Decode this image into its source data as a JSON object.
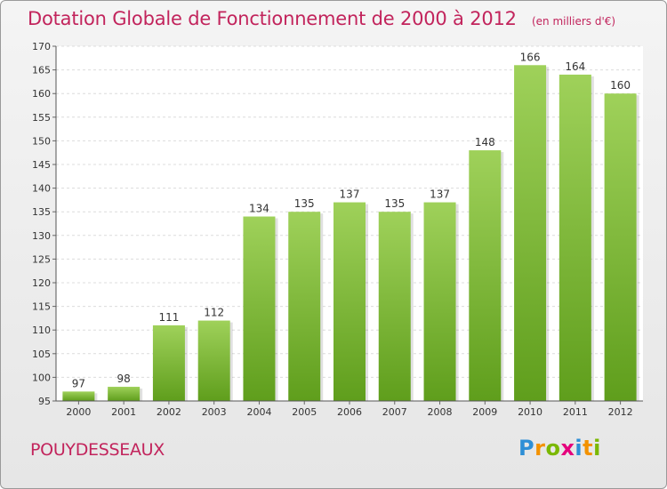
{
  "header": {
    "title": "Dotation Globale de Fonctionnement de 2000 à 2012",
    "subtitle": "(en milliers d'€)"
  },
  "footer": {
    "commune": "POUYDESSEAUX",
    "logo_letters": [
      "P",
      "r",
      "o",
      "x",
      "i",
      "t",
      "i"
    ],
    "logo_colors": [
      "#2e8fd6",
      "#f39200",
      "#7ab800",
      "#e5007d",
      "#2e8fd6",
      "#f39200",
      "#7ab800"
    ]
  },
  "chart_data": {
    "type": "bar",
    "categories": [
      "2000",
      "2001",
      "2002",
      "2003",
      "2004",
      "2005",
      "2006",
      "2007",
      "2008",
      "2009",
      "2010",
      "2011",
      "2012"
    ],
    "values": [
      97,
      98,
      111,
      112,
      134,
      135,
      137,
      135,
      137,
      148,
      166,
      164,
      160
    ],
    "title": "Dotation Globale de Fonctionnement de 2000 à 2012",
    "subtitle": "(en milliers d'€)",
    "xlabel": "",
    "ylabel": "",
    "ylim": [
      95,
      170
    ],
    "yticks": [
      95,
      100,
      105,
      110,
      115,
      120,
      125,
      130,
      135,
      140,
      145,
      150,
      155,
      160,
      165,
      170
    ],
    "grid": true,
    "legend": "none",
    "bar_color_top": "#9fd15a",
    "bar_color_bottom": "#5f9e1c",
    "data_labels": true
  }
}
